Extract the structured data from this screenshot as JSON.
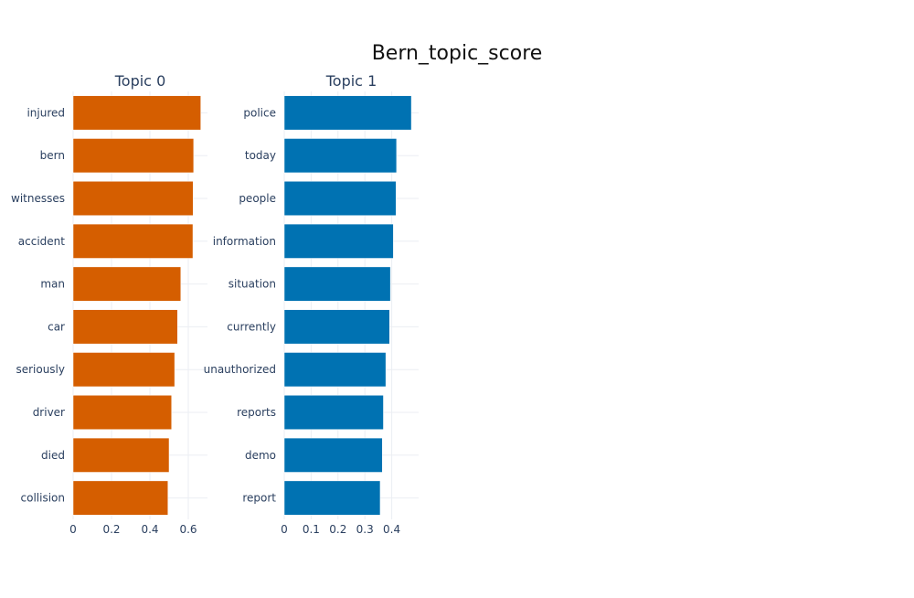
{
  "chart_data": {
    "type": "bar",
    "orientation": "horizontal",
    "title": "Bern_topic_score",
    "grid": true,
    "panels": [
      {
        "title": "Topic 0",
        "color": "#D55E00",
        "categories": [
          "injured",
          "bern",
          "witnesses",
          "accident",
          "man",
          "car",
          "seriously",
          "driver",
          "died",
          "collision"
        ],
        "values": [
          0.665,
          0.628,
          0.625,
          0.624,
          0.561,
          0.544,
          0.529,
          0.513,
          0.5,
          0.494
        ],
        "xlim": [
          0,
          0.7
        ],
        "xticks": [
          "0",
          "0.2",
          "0.4",
          "0.6"
        ],
        "xtick_values": [
          0,
          0.2,
          0.4,
          0.6
        ]
      },
      {
        "title": "Topic 1",
        "color": "#0072B2",
        "categories": [
          "police",
          "today",
          "people",
          "information",
          "situation",
          "currently",
          "unauthorized",
          "reports",
          "demo",
          "report"
        ],
        "values": [
          0.473,
          0.418,
          0.416,
          0.406,
          0.395,
          0.392,
          0.378,
          0.369,
          0.365,
          0.357
        ],
        "xlim": [
          0,
          0.5
        ],
        "xticks": [
          "0",
          "0.1",
          "0.2",
          "0.3",
          "0.4"
        ],
        "xtick_values": [
          0,
          0.1,
          0.2,
          0.3,
          0.4
        ]
      }
    ]
  }
}
